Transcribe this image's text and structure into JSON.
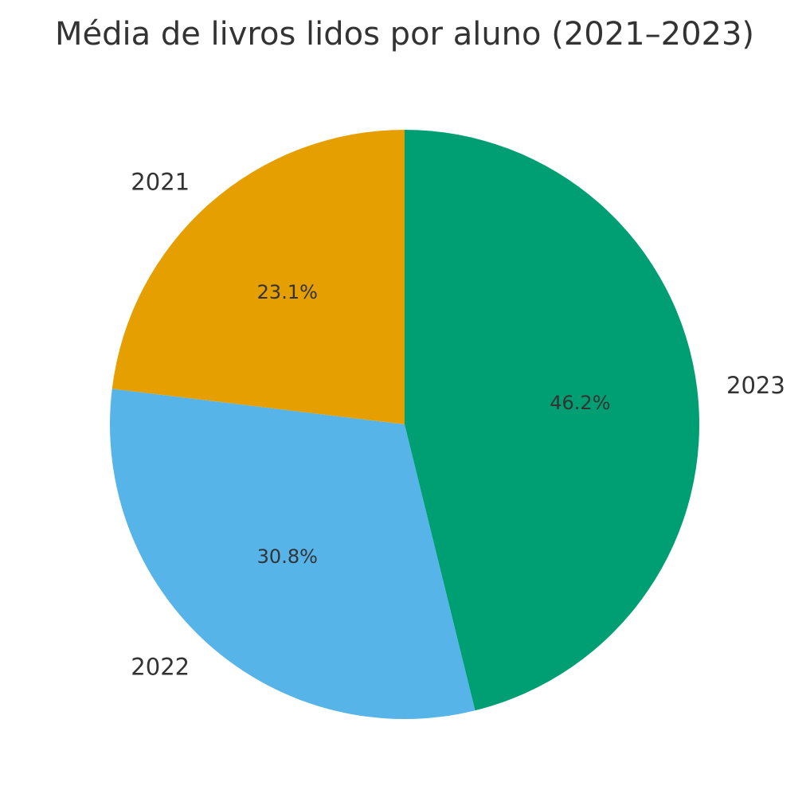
{
  "chart_data": {
    "type": "pie",
    "title": "Média de livros lidos por aluno (2021–2023)",
    "categories": [
      "2021",
      "2022",
      "2023"
    ],
    "percent_labels": [
      "23.1%",
      "30.8%",
      "46.2%"
    ],
    "values": [
      23.1,
      30.8,
      46.2
    ],
    "colors": [
      "#E69F00",
      "#56B4E9",
      "#009E73"
    ],
    "start_angle_deg": 90,
    "direction": "counterclockwise",
    "legend": "none"
  }
}
